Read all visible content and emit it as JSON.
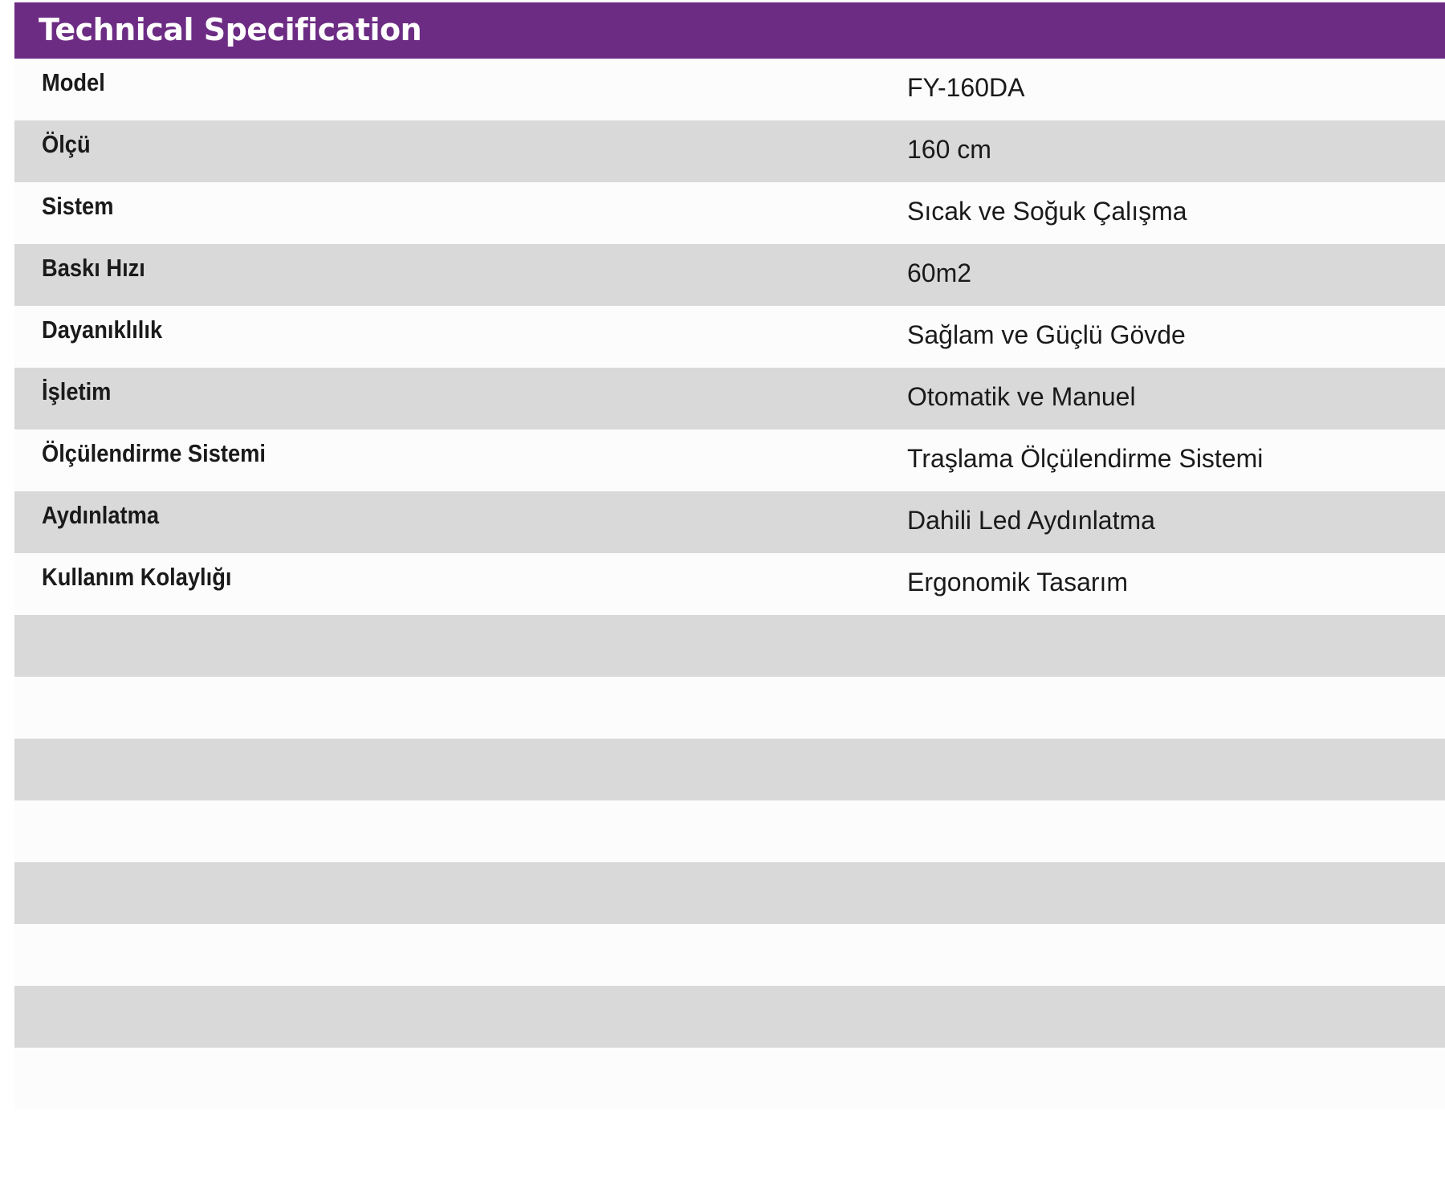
{
  "header": {
    "title": "Technical Specification",
    "color": "#6d2c84"
  },
  "rows": [
    {
      "label": "Model",
      "value": "FY-160DA"
    },
    {
      "label": "Ölçü",
      "value": "160 cm"
    },
    {
      "label": "Sistem",
      "value": "Sıcak ve Soğuk Çalışma"
    },
    {
      "label": "Baskı Hızı",
      "value": "60m2"
    },
    {
      "label": "Dayanıklılık",
      "value": "Sağlam ve Güçlü Gövde"
    },
    {
      "label": "İşletim",
      "value": "Otomatik ve Manuel"
    },
    {
      "label": "Ölçülendirme Sistemi",
      "value": "Traşlama Ölçülendirme Sistemi"
    },
    {
      "label": "Aydınlatma",
      "value": "Dahili Led Aydınlatma"
    },
    {
      "label": "Kullanım Kolaylığı",
      "value": "Ergonomik Tasarım"
    }
  ],
  "empty_rows": 8
}
